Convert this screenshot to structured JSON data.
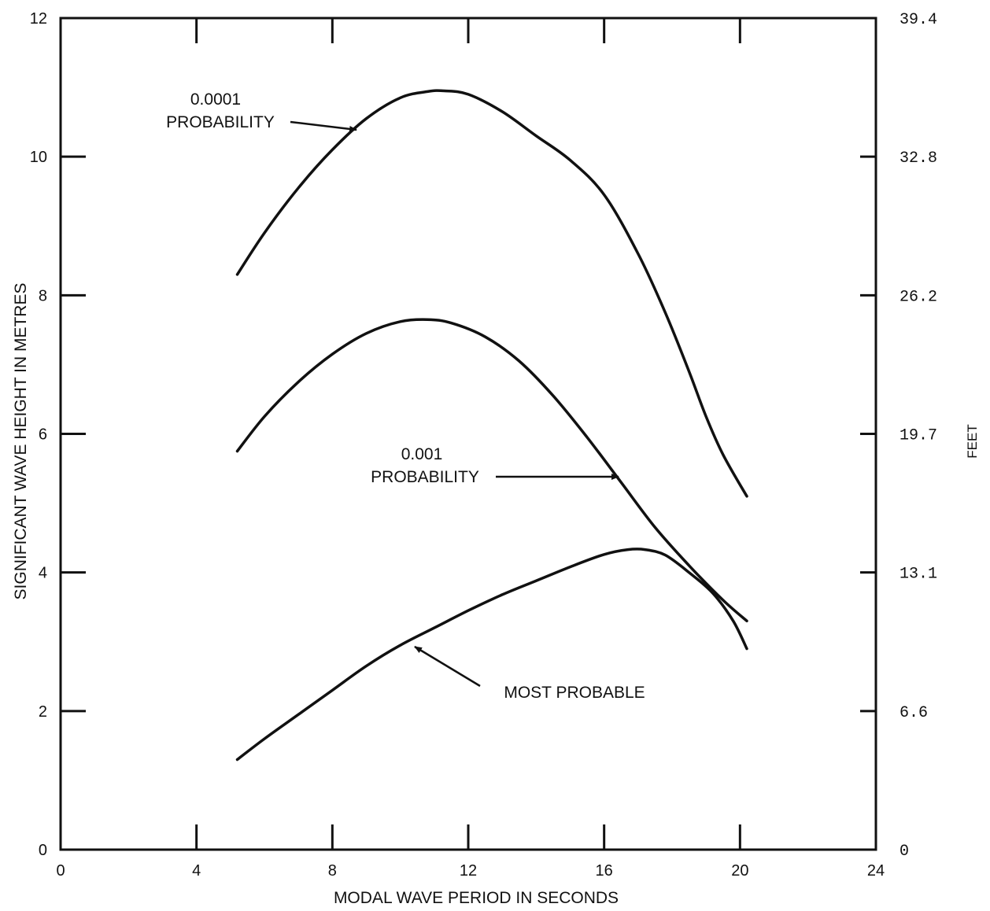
{
  "chart_data": {
    "type": "line",
    "xlabel": "MODAL WAVE PERIOD IN SECONDS",
    "ylabel": "SIGNIFICANT WAVE HEIGHT IN METRES",
    "y2label": "FEET",
    "xlim": [
      0,
      24
    ],
    "ylim": [
      0,
      12
    ],
    "x_ticks": [
      "0",
      "4",
      "8",
      "12",
      "16",
      "20",
      "24"
    ],
    "y_ticks": [
      "0",
      "2",
      "4",
      "6",
      "8",
      "10",
      "12"
    ],
    "y2_ticks": [
      "0",
      "6.6",
      "13.1",
      "19.7",
      "26.2",
      "32.8",
      "39.4"
    ],
    "grid": false,
    "series": [
      {
        "name": "0.0001 PROBABILITY",
        "x": [
          5.2,
          6.0,
          7.0,
          8.0,
          9.0,
          10.0,
          10.8,
          11.3,
          12.0,
          13.0,
          14.0,
          15.0,
          16.0,
          17.0,
          17.8,
          18.5,
          19.0,
          19.5,
          20.2
        ],
        "y": [
          8.3,
          8.9,
          9.55,
          10.1,
          10.55,
          10.85,
          10.94,
          10.95,
          10.9,
          10.65,
          10.3,
          9.95,
          9.45,
          8.6,
          7.75,
          6.9,
          6.25,
          5.7,
          5.1
        ]
      },
      {
        "name": "0.001 PROBABILITY",
        "x": [
          5.2,
          6.0,
          7.0,
          8.0,
          9.0,
          10.0,
          10.8,
          11.5,
          12.5,
          13.5,
          14.5,
          15.5,
          16.5,
          17.5,
          18.5,
          19.5,
          20.2
        ],
        "y": [
          5.75,
          6.25,
          6.75,
          7.15,
          7.45,
          7.62,
          7.65,
          7.6,
          7.4,
          7.05,
          6.55,
          5.95,
          5.3,
          4.65,
          4.1,
          3.6,
          3.3
        ]
      },
      {
        "name": "MOST PROBABLE",
        "x": [
          5.2,
          6.0,
          7.0,
          8.0,
          9.0,
          10.0,
          11.0,
          12.0,
          13.0,
          14.0,
          15.0,
          16.0,
          16.7,
          17.2,
          17.8,
          18.5,
          19.2,
          19.8,
          20.2
        ],
        "y": [
          1.3,
          1.6,
          1.95,
          2.3,
          2.65,
          2.95,
          3.2,
          3.45,
          3.68,
          3.88,
          4.08,
          4.26,
          4.33,
          4.33,
          4.25,
          4.0,
          3.7,
          3.3,
          2.9
        ]
      }
    ],
    "annotations": [
      {
        "lines": [
          "0.0001",
          "PROBABILITY"
        ],
        "series": "0.0001 PROBABILITY"
      },
      {
        "lines": [
          "0.001",
          "PROBABILITY"
        ],
        "series": "0.001 PROBABILITY"
      },
      {
        "lines": [
          "MOST PROBABLE"
        ],
        "series": "MOST PROBABLE"
      }
    ]
  }
}
